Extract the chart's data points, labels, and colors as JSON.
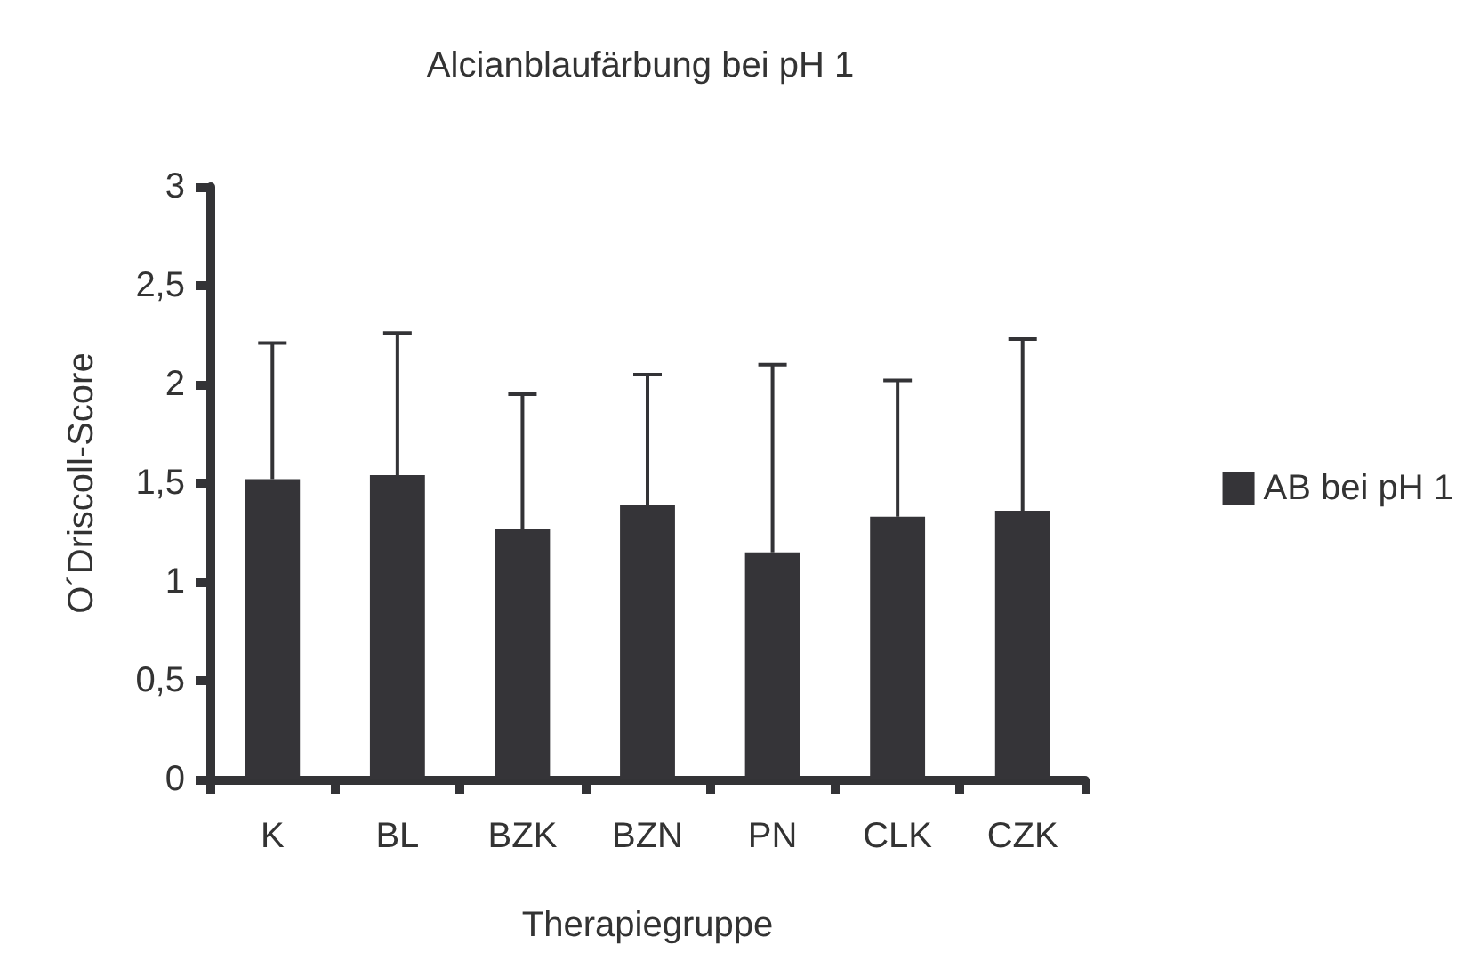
{
  "chart_data": {
    "type": "bar",
    "title": "Alcianblaufärbung bei pH 1",
    "xlabel": "Therapiegruppe",
    "ylabel": "O´Driscoll-Score",
    "categories": [
      "K",
      "BL",
      "BZK",
      "BZN",
      "PN",
      "CLK",
      "CZK"
    ],
    "series": [
      {
        "name": "AB bei pH 1",
        "color": "#353438",
        "values": [
          1.52,
          1.54,
          1.27,
          1.39,
          1.15,
          1.33,
          1.36
        ],
        "errors": [
          [
            1.52,
            2.21
          ],
          [
            1.54,
            2.26
          ],
          [
            1.27,
            1.95
          ],
          [
            1.39,
            2.05
          ],
          [
            1.15,
            2.1
          ],
          [
            1.33,
            2.02
          ],
          [
            1.36,
            2.23
          ]
        ]
      }
    ],
    "ylim": [
      0,
      3
    ],
    "yticks": [
      0,
      {
        "value": 0.5,
        "label": "0,5"
      },
      1,
      {
        "value": 1.5,
        "label": "1,5"
      },
      2,
      {
        "value": 2.5,
        "label": "2,5"
      },
      3
    ],
    "grid": false,
    "legend": "right"
  }
}
